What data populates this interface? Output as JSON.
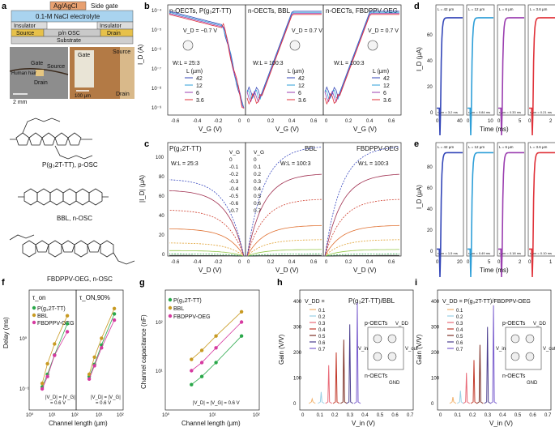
{
  "panels": {
    "a": {
      "letter": "a",
      "layers": [
        "Ag/AgCl",
        "Side gate",
        "0.1-M NaCl electrolyte",
        "Insulator",
        "Source",
        "p/n OSC",
        "Drain",
        "Insulator",
        "Substrate"
      ],
      "photo_labels": [
        "Gate",
        "Source",
        "Human hair",
        "Drain",
        "2 mm",
        "Gate",
        "Source",
        "Drain",
        "100 µm"
      ],
      "molecules": [
        "P(g₃2T-TT), p-OSC",
        "BBL, n-OSC",
        "FBDPPV-OEG, n-OSC"
      ]
    },
    "b": {
      "letter": "b",
      "titles": [
        "p-OECTs, P(g₃2T-TT)",
        "n-OECTs, BBL",
        "n-OECTs, FBDPPV-OEG"
      ],
      "ylabel": "I_D (A)",
      "xlabel": "V_G (V)",
      "y_ticks": [
        "10⁻⁴",
        "10⁻⁵",
        "10⁻⁶",
        "10⁻⁷",
        "10⁻⁸",
        "10⁻⁹"
      ],
      "x_ticks": [
        [
          "-0.6",
          "-0.4",
          "-0.2",
          "0"
        ],
        [
          "0",
          "0.2",
          "0.4",
          "0.6"
        ],
        [
          "0",
          "0.2",
          "0.4",
          "0.6"
        ]
      ],
      "vd_labels": [
        "V_D = −0.7 V",
        "V_D = 0.7 V",
        "V_D = 0.7 V"
      ],
      "wl_labels": [
        "W:L = 25:3",
        "W:L = 100:3",
        "W:L = 100:3"
      ],
      "legend_title": "L (µm)",
      "legend_values": [
        "42",
        "12",
        "6",
        "3.6"
      ]
    },
    "c": {
      "letter": "c",
      "titles": [
        "P(g₃2T-TT)",
        "BBL",
        "FBDPPV-OEG"
      ],
      "ylabel": "|I_D| (µA)",
      "xlabel": "V_D (V)",
      "y_ticks": [
        "100",
        "80",
        "60",
        "40",
        "20",
        "0"
      ],
      "x_ticks": [
        [
          "-0.6",
          "-0.4",
          "-0.2",
          "0"
        ],
        [
          "0",
          "0.2",
          "0.4",
          "0.6"
        ],
        [
          "0",
          "0.2",
          "0.4",
          "0.6"
        ]
      ],
      "wl_labels": [
        "W:L = 25:3",
        "W:L = 100:3",
        "W:L = 100:3"
      ],
      "vg_p": [
        "V_G",
        "0",
        "-0.1",
        "-0.2",
        "-0.3",
        "-0.4",
        "-0.5",
        "-0.6",
        "-0.7"
      ],
      "vg_n": [
        "V_G",
        "0",
        "0.1",
        "0.2",
        "0.3",
        "0.4",
        "0.5",
        "0.6",
        "0.7"
      ]
    },
    "d": {
      "letter": "d",
      "ylabel": "I_D (µA)",
      "xlabel": "Time (ms)",
      "y_ticks": [
        "0",
        "20",
        "40",
        "60"
      ],
      "tops": [
        "L = 42 µm",
        "L = 12 µm",
        "L = 6 µm",
        "L = 3.6 µm"
      ],
      "bottoms": [
        "τ_on = 3.2 ms",
        "τ_on = 0.84 ms",
        "τ_on = 0.33 ms",
        "τ_on = 0.21 ms"
      ],
      "xticks": [
        [
          "0",
          "40"
        ],
        [
          "0",
          "10"
        ],
        [
          "0",
          "5"
        ],
        [
          "0",
          "2"
        ]
      ]
    },
    "e": {
      "letter": "e",
      "ylabel": "I_D (µA)",
      "xlabel": "Time (ms)",
      "y_ticks": [
        "0",
        "20",
        "40",
        "60",
        "80"
      ],
      "tops": [
        "L = 42 µm",
        "L = 12 µm",
        "L = 6 µm",
        "L = 3.6 µm"
      ],
      "bottoms": [
        "τ_on = 1.5 ms",
        "τ_on = 0.49 ms",
        "τ_on = 0.18 ms",
        "τ_on = 0.10 ms"
      ],
      "xticks": [
        [
          "0",
          "20"
        ],
        [
          "0",
          "5"
        ],
        [
          "0",
          "2"
        ],
        [
          "0",
          "1"
        ]
      ]
    },
    "f": {
      "letter": "f",
      "ylabel": "Delay (ms)",
      "xlabel": "Channel length (µm)",
      "titles": [
        "τ_on",
        "τ_ON,90%"
      ],
      "legend": [
        "P(g₃2T-TT)",
        "BBL",
        "FBDPPV-OEG"
      ],
      "note": [
        "|V_D| = |V_G|",
        "= 0.6 V"
      ],
      "y_ticks": [
        "10⁰",
        "10⁻¹"
      ],
      "x_ticks": [
        "10⁰",
        "10¹",
        "10²"
      ]
    },
    "g": {
      "letter": "g",
      "ylabel": "Channel capacitance (nF)",
      "xlabel": "Channel length (µm)",
      "legend": [
        "P(g₃2T-TT)",
        "BBL",
        "FBDPPV-OEG"
      ],
      "note": "|V_D| = |V_G| = 0.6 V",
      "y_ticks": [
        "10²",
        "10¹"
      ],
      "x_ticks": [
        "10⁰",
        "10¹",
        "10²"
      ]
    },
    "h": {
      "letter": "h",
      "title": "P(g₃2T-TT)/BBL",
      "vdd_label": "V_DD =",
      "vdd": [
        "0.1",
        "0.2",
        "0.3",
        "0.4",
        "0.5",
        "0.6",
        "0.7"
      ],
      "ylabel": "Gain (V/V)",
      "xlabel": "V_in (V)",
      "y_ticks": [
        "0",
        "100",
        "200",
        "300",
        "400"
      ],
      "x_ticks": [
        "0",
        "0.1",
        "0.2",
        "0.3",
        "0.4",
        "0.5",
        "0.6",
        "0.7"
      ],
      "circuit": [
        "p-OECTs",
        "V_DD",
        "V_in",
        "V_out",
        "n-OECTs",
        "GND"
      ]
    },
    "i": {
      "letter": "i",
      "title": "V_DD = P(g₃2T-TT)/FBDPPV-OEG",
      "vdd": [
        "0.1",
        "0.2",
        "0.3",
        "0.4",
        "0.5",
        "0.6",
        "0.7"
      ],
      "ylabel": "Gain (V/V)",
      "xlabel": "V_in (V)",
      "y_ticks": [
        "0",
        "100",
        "200",
        "300",
        "400"
      ],
      "x_ticks": [
        "0",
        "0.1",
        "0.2",
        "0.3",
        "0.4",
        "0.5",
        "0.6",
        "0.7"
      ],
      "circuit": [
        "p-OECTs",
        "V_DD",
        "V_in",
        "V_out",
        "n-OECTs",
        "GND"
      ]
    }
  },
  "colors": {
    "L42": "#3346b8",
    "L12": "#2e9fd8",
    "L6": "#9b3fb0",
    "L3_6": "#e0323a",
    "p_series": "#2aa84a",
    "bbl_series": "#c89a22",
    "fbd_series": "#d63aa0",
    "vdd": [
      "#f2b26d",
      "#9ad0e6",
      "#e96a78",
      "#c33a2b",
      "#7d2f25",
      "#4a3d8e",
      "#7b5fcf"
    ]
  },
  "chart_data": [
    {
      "type": "line",
      "panel": "f-left",
      "title": "τ_on",
      "xscale": "log",
      "yscale": "log",
      "x": [
        3.6,
        6,
        12,
        42
      ],
      "series": [
        {
          "name": "P(g₃2T-TT)",
          "values": [
            0.11,
            0.2,
            0.5,
            2.2
          ]
        },
        {
          "name": "BBL",
          "values": [
            0.13,
            0.33,
            0.84,
            3.2
          ]
        },
        {
          "name": "FBDPPV-OEG",
          "values": [
            0.1,
            0.18,
            0.49,
            1.5
          ]
        }
      ]
    },
    {
      "type": "line",
      "panel": "f-right",
      "title": "τ_ON,90%",
      "xscale": "log",
      "yscale": "log",
      "x": [
        3.6,
        6,
        12,
        42
      ],
      "series": [
        {
          "name": "P(g₃2T-TT)",
          "values": [
            0.18,
            0.32,
            0.8,
            3.5
          ]
        },
        {
          "name": "BBL",
          "values": [
            0.2,
            0.45,
            1.1,
            4.5
          ]
        },
        {
          "name": "FBDPPV-OEG",
          "values": [
            0.16,
            0.3,
            0.7,
            2.6
          ]
        }
      ]
    },
    {
      "type": "line",
      "panel": "g",
      "xscale": "log",
      "yscale": "log",
      "x": [
        3.6,
        6,
        12,
        42
      ],
      "series": [
        {
          "name": "P(g₃2T-TT)",
          "values": [
            4,
            6,
            12,
            45
          ]
        },
        {
          "name": "BBL",
          "values": [
            14,
            22,
            45,
            150
          ]
        },
        {
          "name": "FBDPPV-OEG",
          "values": [
            8,
            12,
            25,
            90
          ]
        }
      ]
    },
    {
      "type": "line",
      "panel": "h",
      "xlabel": "V_in (V)",
      "ylabel": "Gain (V/V)",
      "xlim": [
        0,
        0.7
      ],
      "ylim": [
        0,
        400
      ],
      "series": [
        {
          "name": "0.1",
          "peak_x": 0.05,
          "values": [
            18
          ]
        },
        {
          "name": "0.2",
          "peak_x": 0.11,
          "values": [
            45
          ]
        },
        {
          "name": "0.3",
          "peak_x": 0.16,
          "values": [
            150
          ]
        },
        {
          "name": "0.4",
          "peak_x": 0.21,
          "values": [
            200
          ]
        },
        {
          "name": "0.5",
          "peak_x": 0.26,
          "values": [
            250
          ]
        },
        {
          "name": "0.6",
          "peak_x": 0.3,
          "values": [
            310
          ]
        },
        {
          "name": "0.7",
          "peak_x": 0.35,
          "values": [
            395
          ]
        }
      ]
    },
    {
      "type": "line",
      "panel": "i",
      "xlabel": "V_in (V)",
      "ylabel": "Gain (V/V)",
      "xlim": [
        0,
        0.7
      ],
      "ylim": [
        0,
        400
      ],
      "series": [
        {
          "name": "0.1",
          "peak_x": 0.07,
          "values": [
            25
          ]
        },
        {
          "name": "0.2",
          "peak_x": 0.12,
          "values": [
            50
          ]
        },
        {
          "name": "0.3",
          "peak_x": 0.16,
          "values": [
            120
          ]
        },
        {
          "name": "0.4",
          "peak_x": 0.21,
          "values": [
            170
          ]
        },
        {
          "name": "0.5",
          "peak_x": 0.25,
          "values": [
            230
          ]
        },
        {
          "name": "0.6",
          "peak_x": 0.3,
          "values": [
            300
          ]
        },
        {
          "name": "0.7",
          "peak_x": 0.34,
          "values": [
            385
          ]
        }
      ]
    }
  ]
}
